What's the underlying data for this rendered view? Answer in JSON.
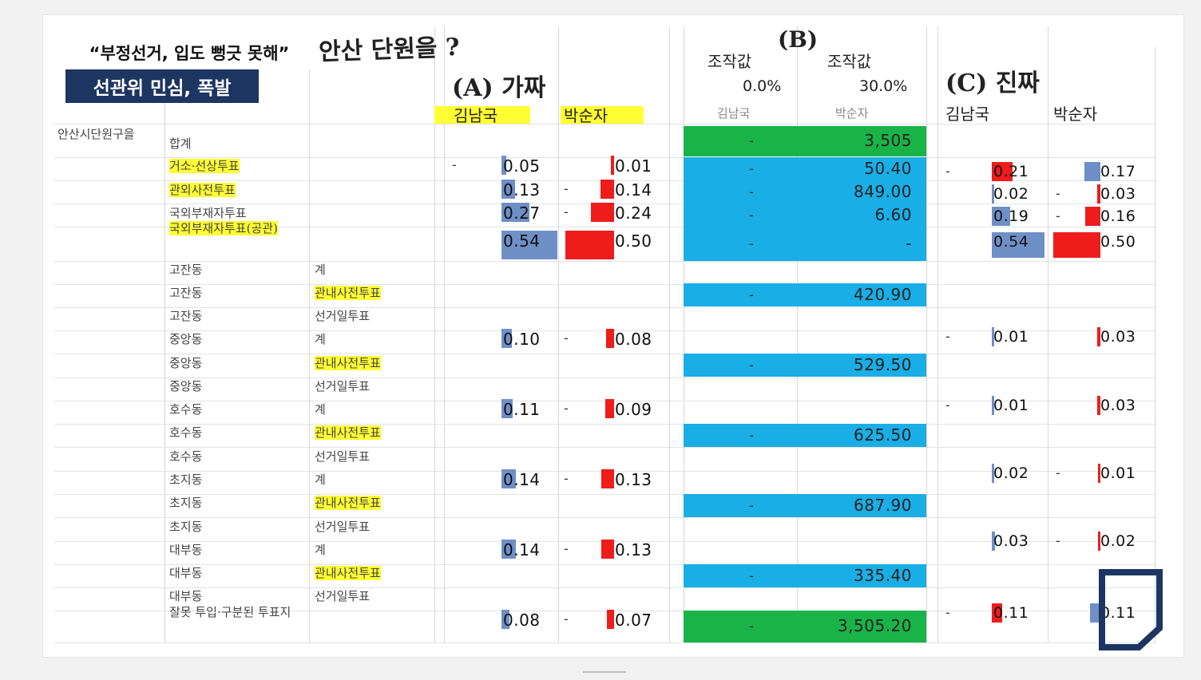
{
  "caption": {
    "headline": "“부정선거, 입도 뻥긋 못해”",
    "subline": "선관위 민심, 폭발"
  },
  "annotations": {
    "top": "안산 단원을 ?",
    "section_a": "(A) 가짜",
    "section_b": "(B)",
    "section_c": "(C) 진짜"
  },
  "headers": {
    "a_kim": "김남국",
    "a_park": "박순자",
    "b_label1": "조작값",
    "b_label2": "조작값",
    "b_pct1": "0.0%",
    "b_pct2": "30.0%",
    "b_kim": "김남국",
    "b_park": "박순자",
    "c_kim": "김남국",
    "c_park": "박순자"
  },
  "left": {
    "district": "안산시단원구을",
    "total": "합계"
  },
  "rows": [
    {
      "c1": "거소·선상투표",
      "c1_hl": true,
      "c2": ""
    },
    {
      "c1": "관외사전투표",
      "c1_hl": true,
      "c2": ""
    },
    {
      "c1": "국외부재자투표",
      "c1_hl": false,
      "c2": ""
    },
    {
      "c1": "국외부재자투표(공관)",
      "c1_hl": true,
      "c2": ""
    },
    {
      "c1": "고잔동",
      "c2": "계"
    },
    {
      "c1": "고잔동",
      "c2": "관내사전투표",
      "c2_hl": true
    },
    {
      "c1": "고잔동",
      "c2": "선거일투표"
    },
    {
      "c1": "중앙동",
      "c2": "계"
    },
    {
      "c1": "중앙동",
      "c2": "관내사전투표",
      "c2_hl": true
    },
    {
      "c1": "중앙동",
      "c2": "선거일투표"
    },
    {
      "c1": "호수동",
      "c2": "계"
    },
    {
      "c1": "호수동",
      "c2": "관내사전투표",
      "c2_hl": true
    },
    {
      "c1": "호수동",
      "c2": "선거일투표"
    },
    {
      "c1": "초지동",
      "c2": "계"
    },
    {
      "c1": "초지동",
      "c2": "관내사전투표",
      "c2_hl": true
    },
    {
      "c1": "초지동",
      "c2": "선거일투표"
    },
    {
      "c1": "대부동",
      "c2": "계"
    },
    {
      "c1": "대부동",
      "c2": "관내사전투표",
      "c2_hl": true
    },
    {
      "c1": "대부동",
      "c2": "선거일투표"
    },
    {
      "c1": "잘못 투입·구분된 투표지",
      "c2": ""
    }
  ],
  "section_a": [
    {
      "kim": "0.05",
      "kim_dash": true,
      "park": "0.01"
    },
    {
      "kim": "0.13",
      "park": "0.14",
      "park_dash": true
    },
    {
      "kim": "0.27",
      "park": "0.24",
      "park_dash": true
    },
    {
      "kim": "0.54",
      "park": "0.50"
    },
    {
      "kim": "0.10",
      "park": "0.08",
      "park_dash": true
    },
    {
      "kim": "0.11",
      "park": "0.09",
      "park_dash": true
    },
    {
      "kim": "0.14",
      "park": "0.13",
      "park_dash": true
    },
    {
      "kim": "0.14",
      "park": "0.13",
      "park_dash": true
    },
    {
      "kim": "0.08",
      "park": "0.07",
      "park_dash": true
    }
  ],
  "section_b": [
    {
      "kim": "-",
      "park": "3,505",
      "color": "#19b348"
    },
    {
      "kim": "-",
      "park": "50.40",
      "color": "#19aee6"
    },
    {
      "kim": "-",
      "park": "849.00",
      "color": "#19aee6"
    },
    {
      "kim": "-",
      "park": "6.60",
      "color": "#19aee6"
    },
    {
      "kim": "-",
      "park": "-",
      "color": "#19aee6"
    },
    {
      "kim": "-",
      "park": "420.90",
      "color": "#19aee6"
    },
    {
      "kim": "-",
      "park": "529.50",
      "color": "#19aee6"
    },
    {
      "kim": "-",
      "park": "625.50",
      "color": "#19aee6"
    },
    {
      "kim": "-",
      "park": "687.90",
      "color": "#19aee6"
    },
    {
      "kim": "-",
      "park": "335.40",
      "color": "#19aee6"
    },
    {
      "kim": "-",
      "park": "3,505.20",
      "color": "#19b348"
    }
  ],
  "section_c": [
    {
      "kim": "0.21",
      "kim_dash": true,
      "park": "0.17"
    },
    {
      "kim": "0.02",
      "park": "0.03",
      "park_dash": true
    },
    {
      "kim": "0.19",
      "park": "0.16",
      "park_dash": true
    },
    {
      "kim": "0.54",
      "park": "0.50"
    },
    {
      "kim": "0.01",
      "kim_dash": true,
      "park": "0.03"
    },
    {
      "kim": "0.01",
      "kim_dash": true,
      "park": "0.03"
    },
    {
      "kim": "0.02",
      "park": "0.01",
      "park_dash": true
    },
    {
      "kim": "0.03",
      "park": "0.02",
      "park_dash": true
    },
    {
      "kim": "0.11",
      "kim_dash": true,
      "park": "0.11"
    }
  ],
  "colors": {
    "kim_bar": "#6f8fc7",
    "park_bar": "#ef1c1c",
    "highlight": "#ffff33",
    "caption_bg": "#1d3561"
  },
  "logo": "D-logo"
}
